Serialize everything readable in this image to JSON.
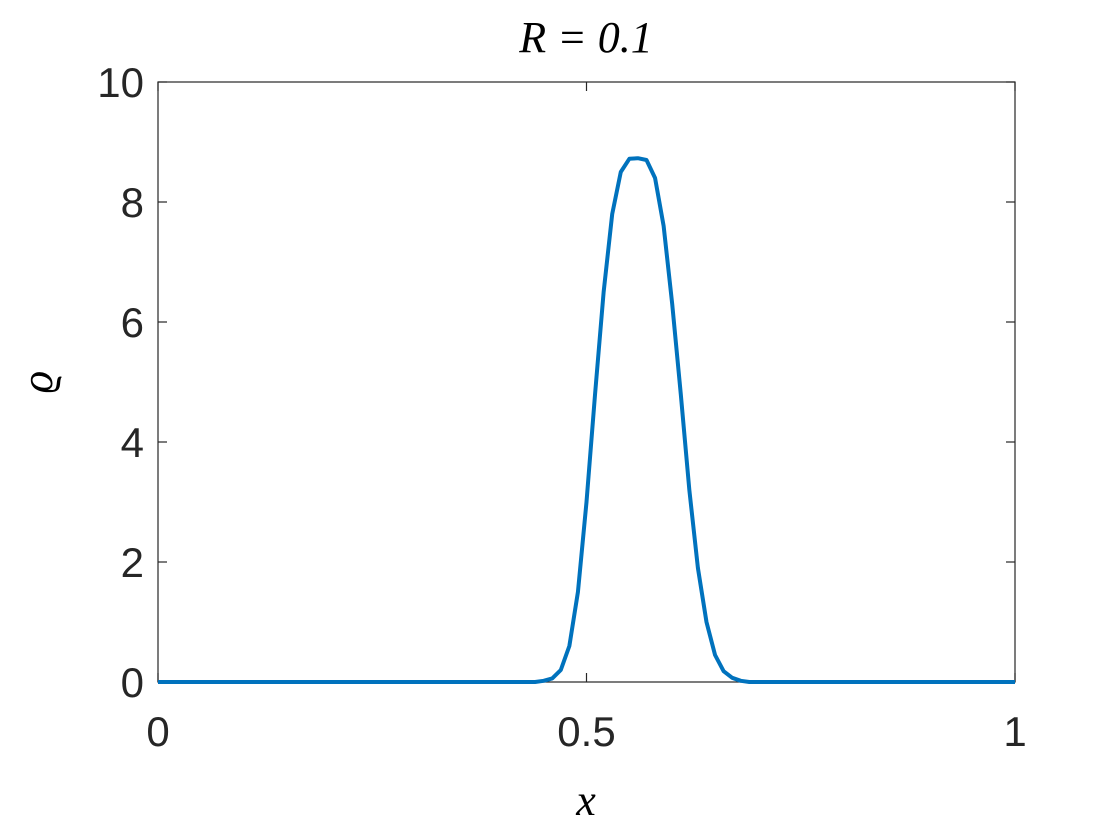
{
  "chart_data": {
    "type": "line",
    "title": "R = 0.1",
    "xlabel": "x",
    "ylabel": "ϱ",
    "x": [
      0,
      0.1,
      0.2,
      0.3,
      0.4,
      0.44,
      0.45,
      0.46,
      0.47,
      0.48,
      0.49,
      0.5,
      0.51,
      0.52,
      0.53,
      0.54,
      0.55,
      0.56,
      0.57,
      0.58,
      0.59,
      0.6,
      0.61,
      0.62,
      0.63,
      0.64,
      0.65,
      0.66,
      0.67,
      0.68,
      0.69,
      0.8,
      0.9,
      1
    ],
    "series": [
      {
        "name": "ϱ",
        "color": "#0072bd",
        "values": [
          0,
          0,
          0,
          0,
          0,
          0,
          0.02,
          0.06,
          0.2,
          0.6,
          1.5,
          3.0,
          4.8,
          6.5,
          7.8,
          8.5,
          8.72,
          8.73,
          8.7,
          8.4,
          7.6,
          6.3,
          4.8,
          3.2,
          1.9,
          1.0,
          0.45,
          0.18,
          0.07,
          0.02,
          0,
          0,
          0,
          0
        ]
      }
    ],
    "xlim": [
      0,
      1
    ],
    "xticks": [
      0,
      0.5,
      1
    ],
    "ylim": [
      0,
      10
    ],
    "yticks": [
      0,
      2,
      4,
      6,
      8,
      10
    ]
  }
}
